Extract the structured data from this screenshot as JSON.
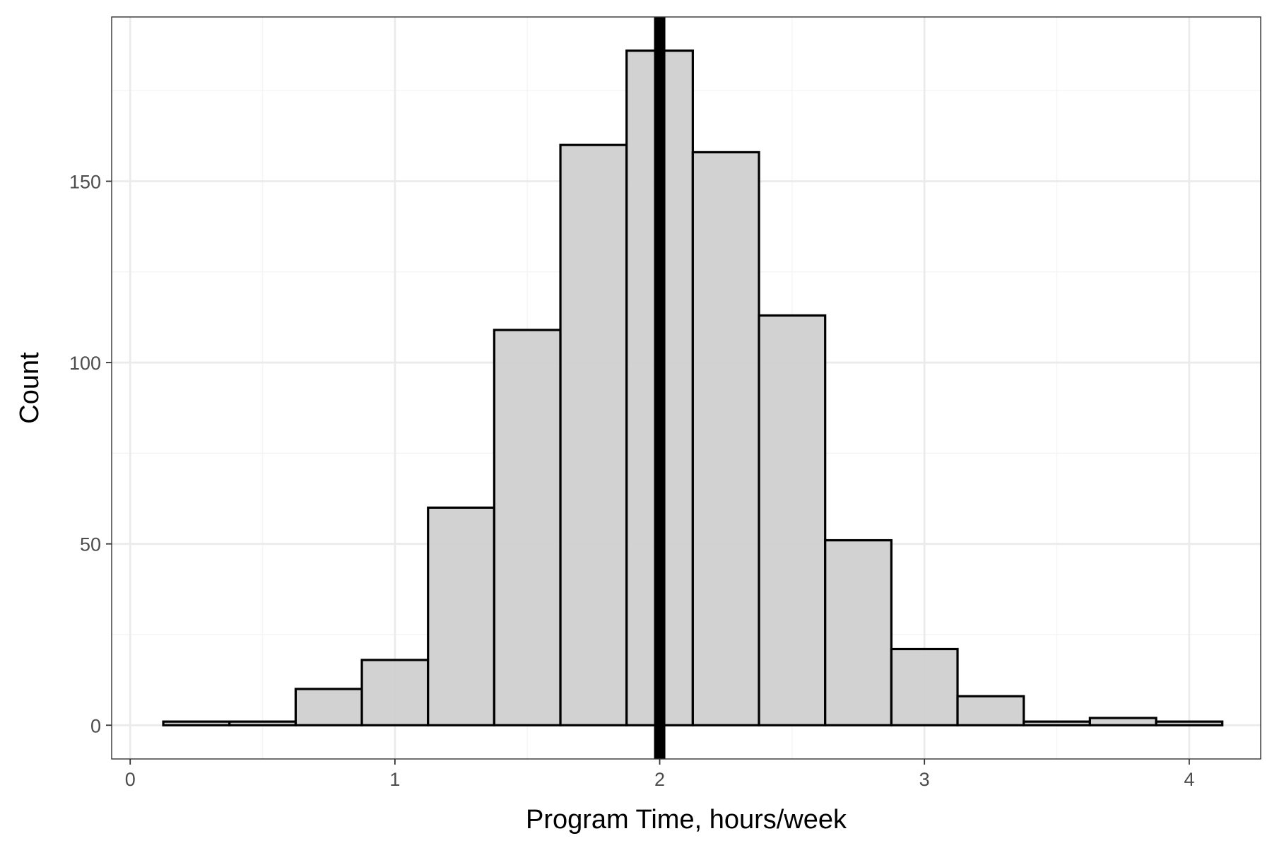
{
  "chart_data": {
    "type": "bar",
    "subtype": "histogram",
    "title": "",
    "xlabel": "Program Time, hours/week",
    "ylabel": "Count",
    "xlim": [
      -0.07,
      4.27
    ],
    "ylim": [
      -9.3,
      195.3
    ],
    "x_ticks": [
      0,
      1,
      2,
      3,
      4
    ],
    "x_minor_ticks": [
      0.5,
      1.5,
      2.5,
      3.5
    ],
    "y_ticks": [
      0,
      50,
      100,
      150
    ],
    "y_minor_ticks": [
      25,
      75,
      125,
      175
    ],
    "grid": true,
    "bin_width": 0.25,
    "bins": [
      {
        "start": 0.125,
        "end": 0.375,
        "count": 1
      },
      {
        "start": 0.375,
        "end": 0.625,
        "count": 1
      },
      {
        "start": 0.625,
        "end": 0.875,
        "count": 10
      },
      {
        "start": 0.875,
        "end": 1.125,
        "count": 18
      },
      {
        "start": 1.125,
        "end": 1.375,
        "count": 60
      },
      {
        "start": 1.375,
        "end": 1.625,
        "count": 109
      },
      {
        "start": 1.625,
        "end": 1.875,
        "count": 160
      },
      {
        "start": 1.875,
        "end": 2.125,
        "count": 186
      },
      {
        "start": 2.125,
        "end": 2.375,
        "count": 158
      },
      {
        "start": 2.375,
        "end": 2.625,
        "count": 113
      },
      {
        "start": 2.625,
        "end": 2.875,
        "count": 51
      },
      {
        "start": 2.875,
        "end": 3.125,
        "count": 21
      },
      {
        "start": 3.125,
        "end": 3.375,
        "count": 8
      },
      {
        "start": 3.375,
        "end": 3.625,
        "count": 1
      },
      {
        "start": 3.625,
        "end": 3.875,
        "count": 2
      },
      {
        "start": 3.875,
        "end": 4.125,
        "count": 1
      }
    ],
    "reference_line": {
      "x": 2.0,
      "color": "#000000"
    },
    "colors": {
      "bar_fill": "#d0d0d0",
      "bar_stroke": "#000000",
      "grid_major": "#ebebeb",
      "grid_minor": "#f4f4f4",
      "panel_border": "#333333"
    }
  }
}
